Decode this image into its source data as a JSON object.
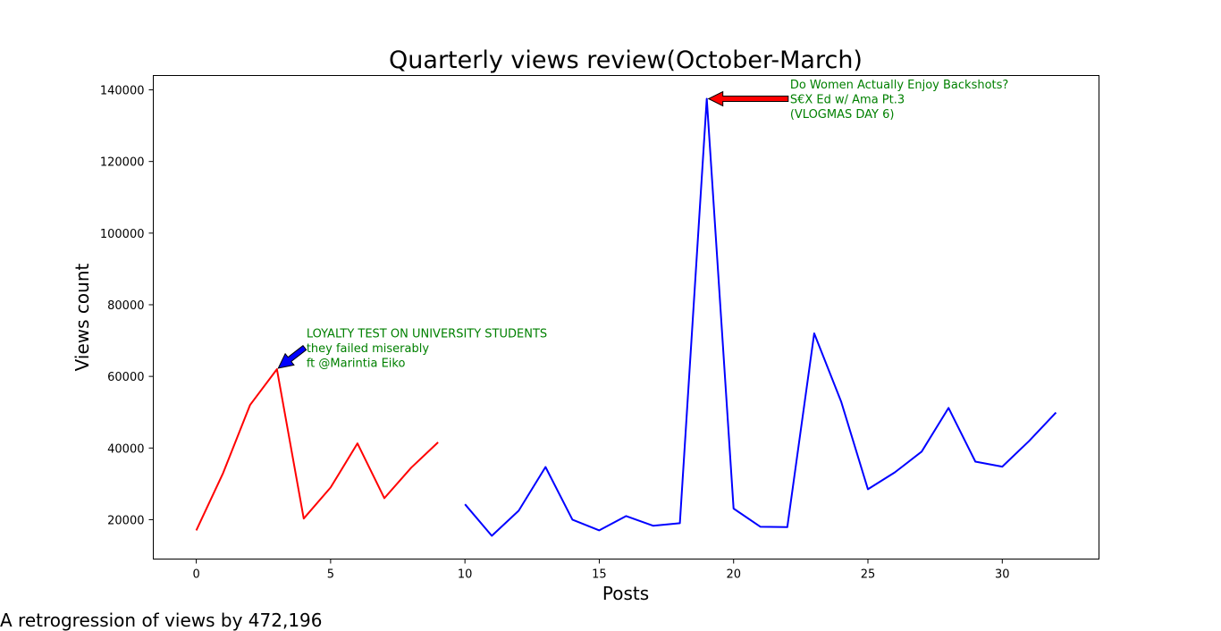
{
  "chart_data": {
    "type": "line",
    "title": "Quarterly views review(October-March)",
    "xlabel": "Posts",
    "ylabel": "Views count",
    "xlim": [
      -1.6,
      33.6
    ],
    "ylim": [
      9000,
      144000
    ],
    "xticks": [
      0,
      5,
      10,
      15,
      20,
      25,
      30
    ],
    "yticks": [
      20000,
      40000,
      60000,
      80000,
      100000,
      120000,
      140000
    ],
    "grid": false,
    "series": [
      {
        "color": "#ff0000",
        "x": [
          0,
          1,
          2,
          3,
          4,
          5,
          6,
          7,
          8,
          9
        ],
        "y": [
          17000,
          33000,
          52000,
          62000,
          20300,
          29000,
          41300,
          26000,
          34500,
          41600
        ]
      },
      {
        "color": "#0000ff",
        "x": [
          10,
          11,
          12,
          13,
          14,
          15,
          16,
          17,
          18,
          19,
          20,
          21,
          22,
          23,
          24,
          25,
          26,
          27,
          28,
          29,
          30,
          31,
          32
        ],
        "y": [
          24300,
          15500,
          22500,
          34700,
          20000,
          17000,
          21000,
          18300,
          19000,
          137500,
          23100,
          18000,
          17900,
          72000,
          53000,
          28500,
          33200,
          39000,
          51200,
          36200,
          34800,
          42000,
          49900
        ]
      }
    ],
    "annotations": [
      {
        "lines": [
          "LOYALTY TEST ON UNIVERSITY STUDENTS",
          "they failed miserably",
          " ft @Marintia Eiko"
        ],
        "point": [
          3,
          62000
        ],
        "text_at": [
          4,
          68000
        ],
        "text_color": "#008000",
        "arrow_color": "#0000ff"
      },
      {
        "lines": [
          "Do Women Actually Enjoy Backshots?",
          "S€X Ed w/ Ama Pt.3",
          "(VLOGMAS DAY 6)"
        ],
        "point": [
          19,
          137500
        ],
        "text_at": [
          22,
          137500
        ],
        "text_color": "#008000",
        "arrow_color": "#ff0000"
      }
    ]
  },
  "footer_note": "A retrogression of views by 472,196"
}
